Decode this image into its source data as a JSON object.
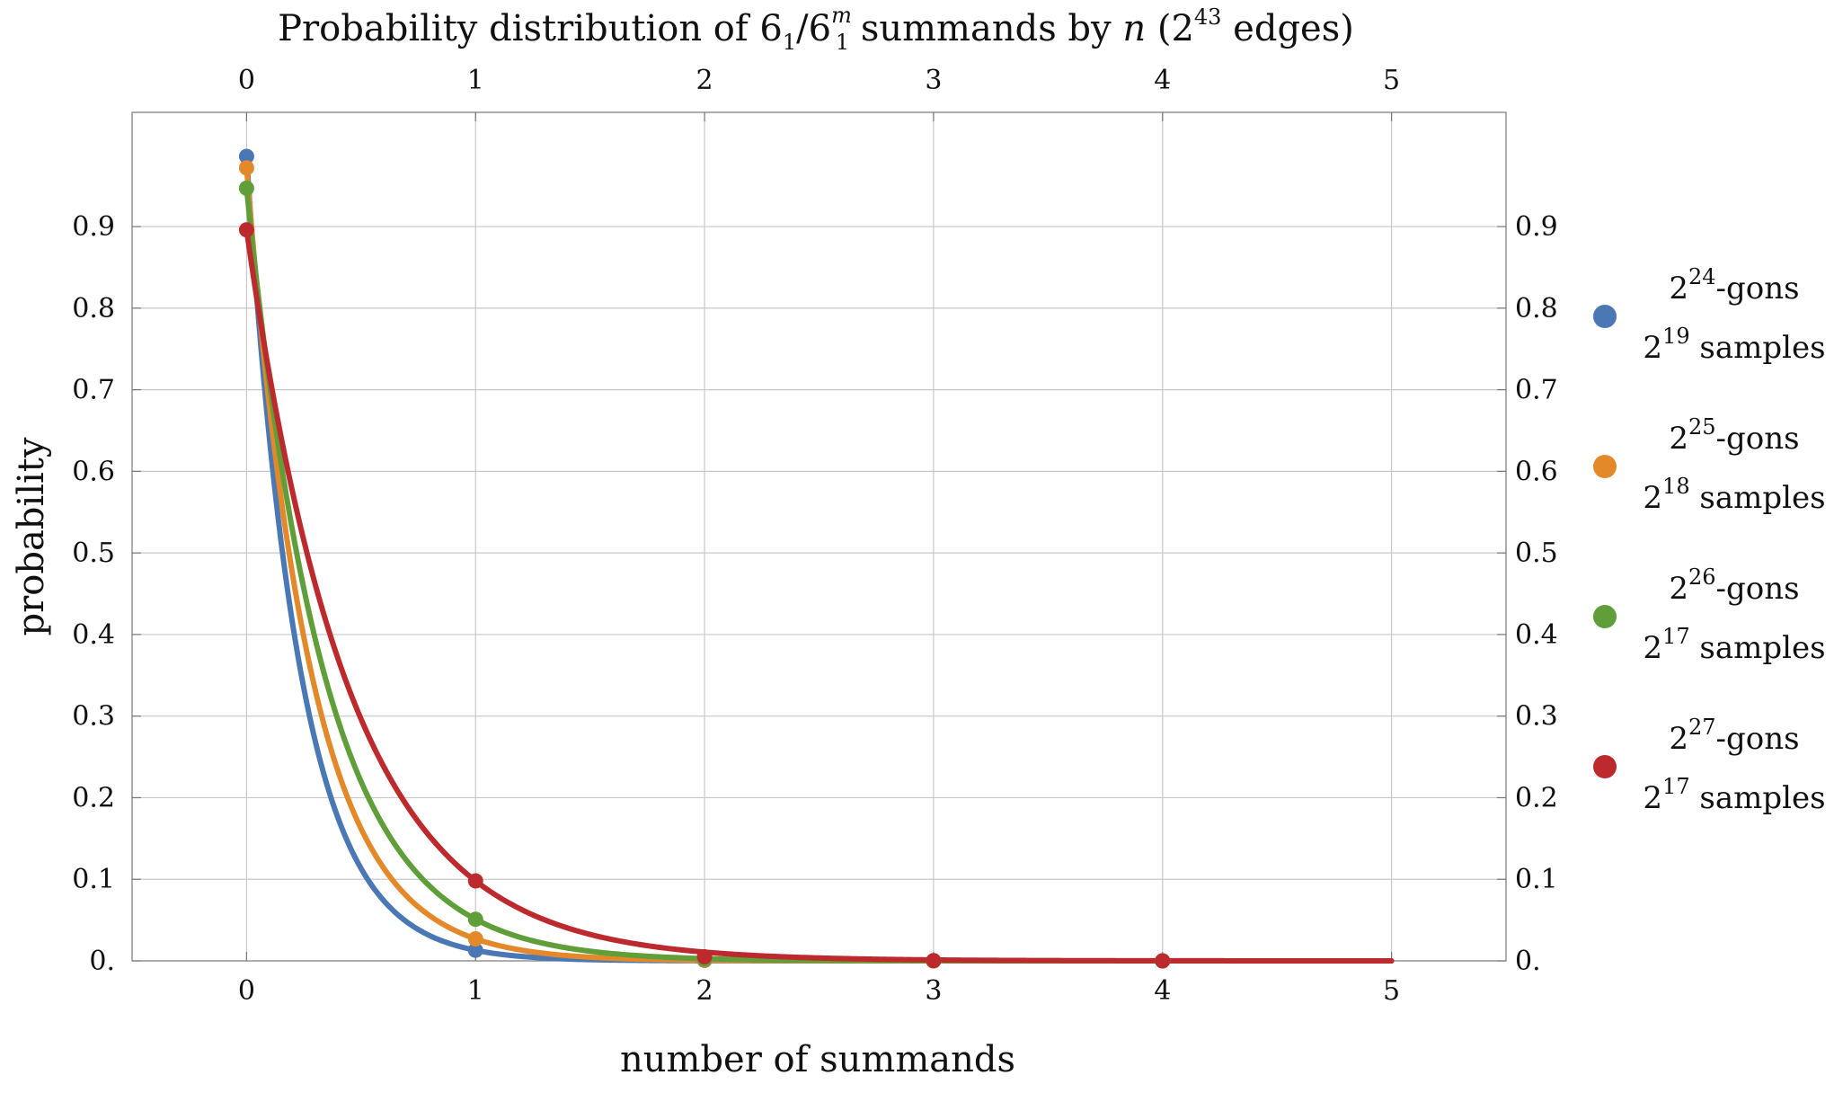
{
  "chart_data": {
    "type": "line",
    "title": {
      "prefix": "Probability distribution of 6",
      "sub1": "1",
      "slash": "/6",
      "sup_m": "m",
      "sub2": "1",
      "mid": " summands by ",
      "var_n": "n",
      "paren_open": " (2",
      "exp": "43",
      "suffix": " edges)"
    },
    "xlabel": "number of summands",
    "ylabel": "probability",
    "xlim": [
      -0.5,
      5.5
    ],
    "ylim": [
      0,
      1.04
    ],
    "x_ticks": [
      0,
      1,
      2,
      3,
      4,
      5
    ],
    "x_tick_labels": [
      "0",
      "1",
      "2",
      "3",
      "4",
      "5"
    ],
    "y_ticks": [
      0,
      0.1,
      0.2,
      0.3,
      0.4,
      0.5,
      0.6,
      0.7,
      0.8,
      0.9
    ],
    "y_tick_labels": [
      "0.",
      "0.1",
      "0.2",
      "0.3",
      "0.4",
      "0.5",
      "0.6",
      "0.7",
      "0.8",
      "0.9"
    ],
    "grid": true,
    "legend_position": "right",
    "series": [
      {
        "name": "2^24-gons 2^19 samples",
        "gons_exp": "24",
        "gons_text": "-gons",
        "samples_exp": "19",
        "samples_text": " samples",
        "base": "2",
        "color": "#4a78b5",
        "x": [
          0,
          1,
          2,
          3,
          4
        ],
        "values": [
          0.986,
          0.013,
          0.0006,
          0.0,
          0.0
        ]
      },
      {
        "name": "2^25-gons 2^18 samples",
        "gons_exp": "25",
        "gons_text": "-gons",
        "samples_exp": "18",
        "samples_text": " samples",
        "base": "2",
        "color": "#e3892a",
        "x": [
          0,
          1,
          2,
          3,
          4
        ],
        "values": [
          0.972,
          0.027,
          0.001,
          0.0,
          0.0
        ]
      },
      {
        "name": "2^26-gons 2^17 samples",
        "gons_exp": "26",
        "gons_text": "-gons",
        "samples_exp": "17",
        "samples_text": " samples",
        "base": "2",
        "color": "#5f9e39",
        "x": [
          0,
          1,
          2,
          3,
          4
        ],
        "values": [
          0.947,
          0.051,
          0.002,
          0.0,
          0.0
        ]
      },
      {
        "name": "2^27-gons 2^17 samples",
        "gons_exp": "27",
        "gons_text": "-gons",
        "samples_exp": "17",
        "samples_text": " samples",
        "base": "2",
        "color": "#bd2a2e",
        "x": [
          0,
          1,
          2,
          3,
          4
        ],
        "values": [
          0.896,
          0.098,
          0.005,
          0.0003,
          0.0
        ]
      }
    ]
  }
}
